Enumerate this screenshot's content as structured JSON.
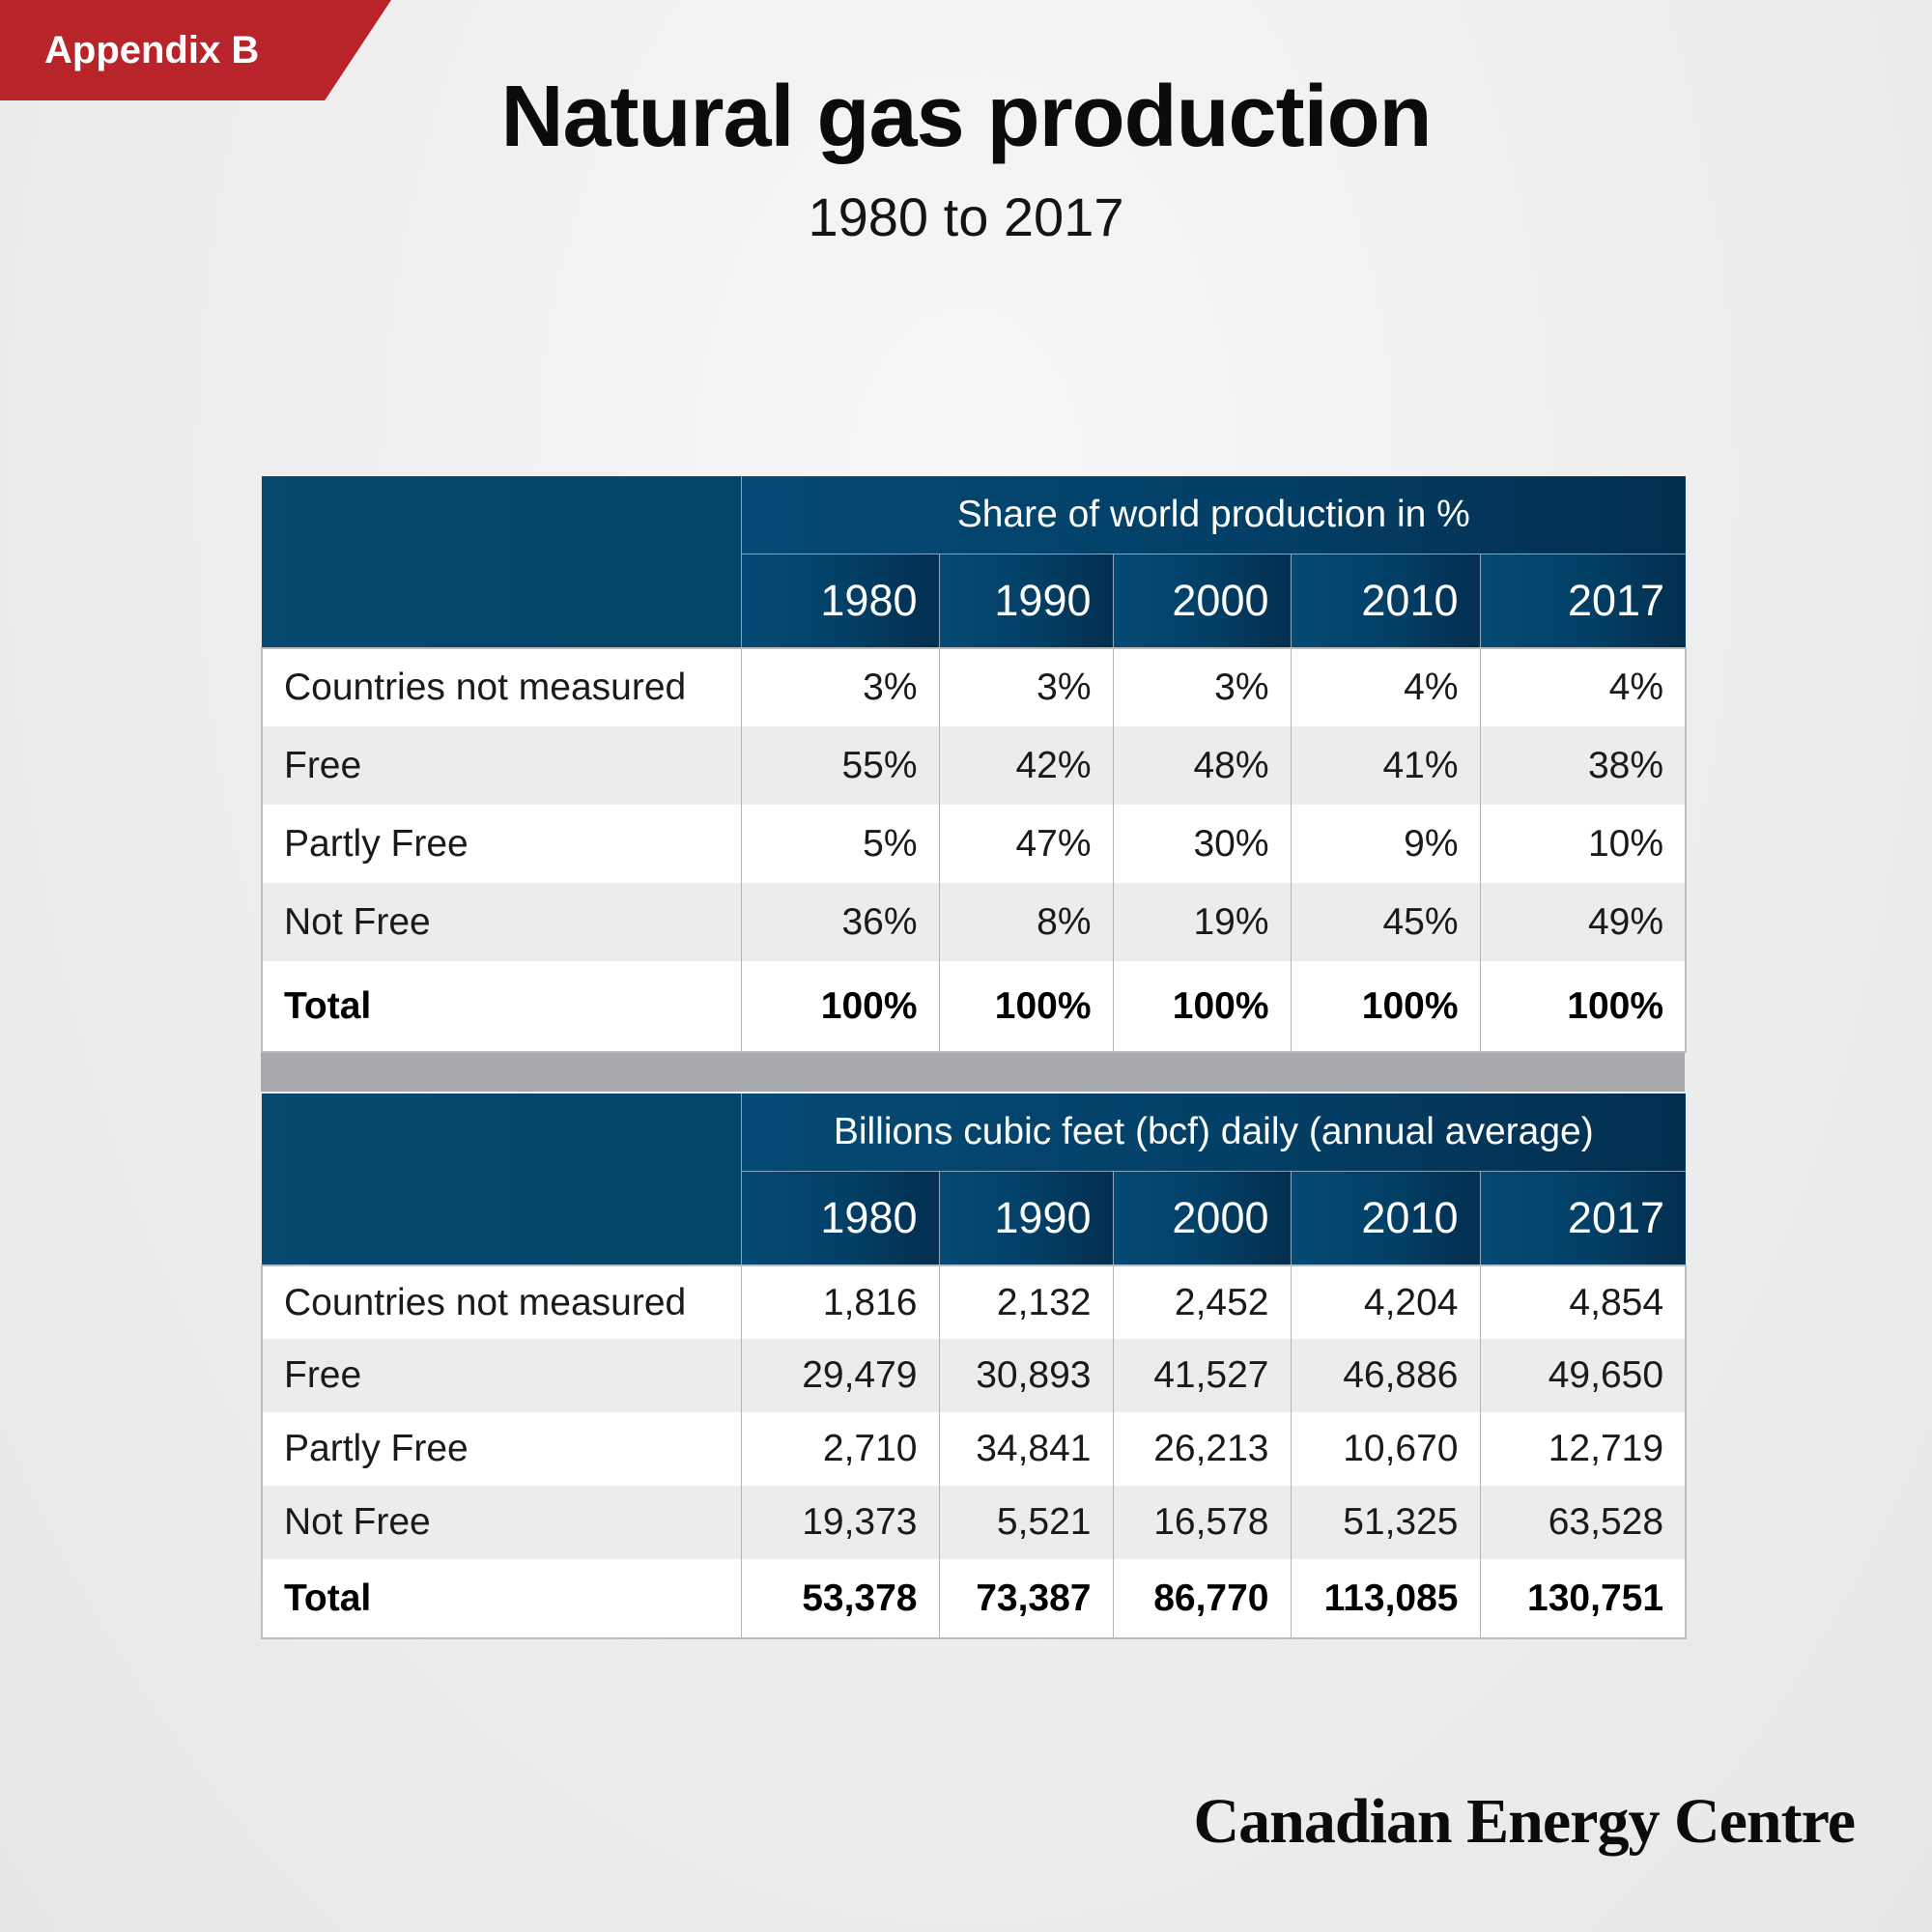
{
  "tag": "Appendix B",
  "title": "Natural gas production",
  "subtitle": "1980 to 2017",
  "brand": "Canadian Energy Centre",
  "colors": {
    "tag": "#b9232a",
    "header": "#033f66",
    "separator": "#a7a9ac"
  },
  "chart_data": [
    {
      "type": "table",
      "header": "Share of world production in %",
      "columns": [
        "1980",
        "1990",
        "2000",
        "2010",
        "2017"
      ],
      "rows": [
        {
          "label": "Countries not measured",
          "values": [
            "3%",
            "3%",
            "3%",
            "4%",
            "4%"
          ]
        },
        {
          "label": "Free",
          "values": [
            "55%",
            "42%",
            "48%",
            "41%",
            "38%"
          ]
        },
        {
          "label": "Partly Free",
          "values": [
            "5%",
            "47%",
            "30%",
            "9%",
            "10%"
          ]
        },
        {
          "label": "Not Free",
          "values": [
            "36%",
            "8%",
            "19%",
            "45%",
            "49%"
          ]
        },
        {
          "label": "Total",
          "values": [
            "100%",
            "100%",
            "100%",
            "100%",
            "100%"
          ]
        }
      ]
    },
    {
      "type": "table",
      "header": "Billions cubic feet (bcf) daily (annual average)",
      "columns": [
        "1980",
        "1990",
        "2000",
        "2010",
        "2017"
      ],
      "rows": [
        {
          "label": "Countries not measured",
          "values": [
            "1,816",
            "2,132",
            "2,452",
            "4,204",
            "4,854"
          ]
        },
        {
          "label": "Free",
          "values": [
            "29,479",
            "30,893",
            "41,527",
            "46,886",
            "49,650"
          ]
        },
        {
          "label": "Partly Free",
          "values": [
            "2,710",
            "34,841",
            "26,213",
            "10,670",
            "12,719"
          ]
        },
        {
          "label": "Not Free",
          "values": [
            "19,373",
            "5,521",
            "16,578",
            "51,325",
            "63,528"
          ]
        },
        {
          "label": "Total",
          "values": [
            "53,378",
            "73,387",
            "86,770",
            "113,085",
            "130,751"
          ]
        }
      ]
    }
  ]
}
